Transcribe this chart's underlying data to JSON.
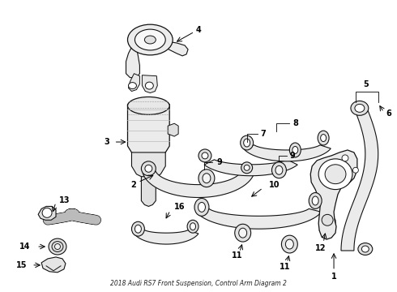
{
  "title": "2018 Audi RS7 Front Suspension, Control Arm Diagram 2",
  "background_color": "#ffffff",
  "fig_width": 4.9,
  "fig_height": 3.6,
  "dpi": 100,
  "line_color": "#000000",
  "part_fill": "#f0f0f0",
  "part_edge": "#111111",
  "label_fontsize": 7,
  "label_fontweight": "bold"
}
